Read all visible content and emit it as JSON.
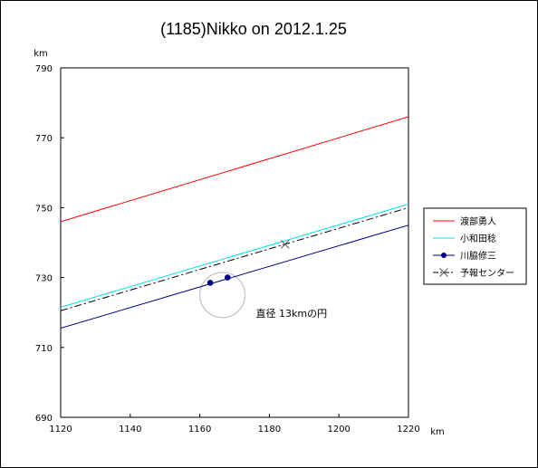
{
  "chart_data": {
    "type": "line",
    "title": "(1185)Nikko on 2012.1.25",
    "xlabel": "km",
    "ylabel": "km",
    "xlim": [
      1120,
      1220
    ],
    "ylim": [
      690,
      790
    ],
    "xticks": [
      1120,
      1140,
      1160,
      1180,
      1200,
      1220
    ],
    "yticks": [
      690,
      710,
      730,
      750,
      770,
      790
    ],
    "grid": false,
    "legend_position": "right",
    "series": [
      {
        "name": "渡部勇人",
        "color": "#ff0000",
        "style": "solid",
        "marker": "none",
        "x": [
          1120,
          1220
        ],
        "y": [
          746,
          776
        ]
      },
      {
        "name": "小和田稔",
        "color": "#00e0e0",
        "style": "solid",
        "marker": "none",
        "x": [
          1120,
          1220
        ],
        "y": [
          721.5,
          751
        ]
      },
      {
        "name": "川脇修三",
        "color": "#000080",
        "style": "solid",
        "marker": "circle",
        "x": [
          1120,
          1220
        ],
        "y": [
          715.5,
          745
        ],
        "points": [
          [
            1163,
            728.5
          ],
          [
            1168,
            730
          ]
        ]
      },
      {
        "name": "予報センター",
        "color": "#000000",
        "style": "dashdot",
        "marker": "x",
        "x": [
          1120,
          1220
        ],
        "y": [
          720.5,
          750
        ],
        "points": [
          [
            1184.5,
            739.5
          ]
        ]
      }
    ],
    "annotations": [
      {
        "text": "直径 13kmの円",
        "shape": "circle",
        "center": [
          1166.5,
          725
        ],
        "diameter_km": 13
      }
    ]
  }
}
